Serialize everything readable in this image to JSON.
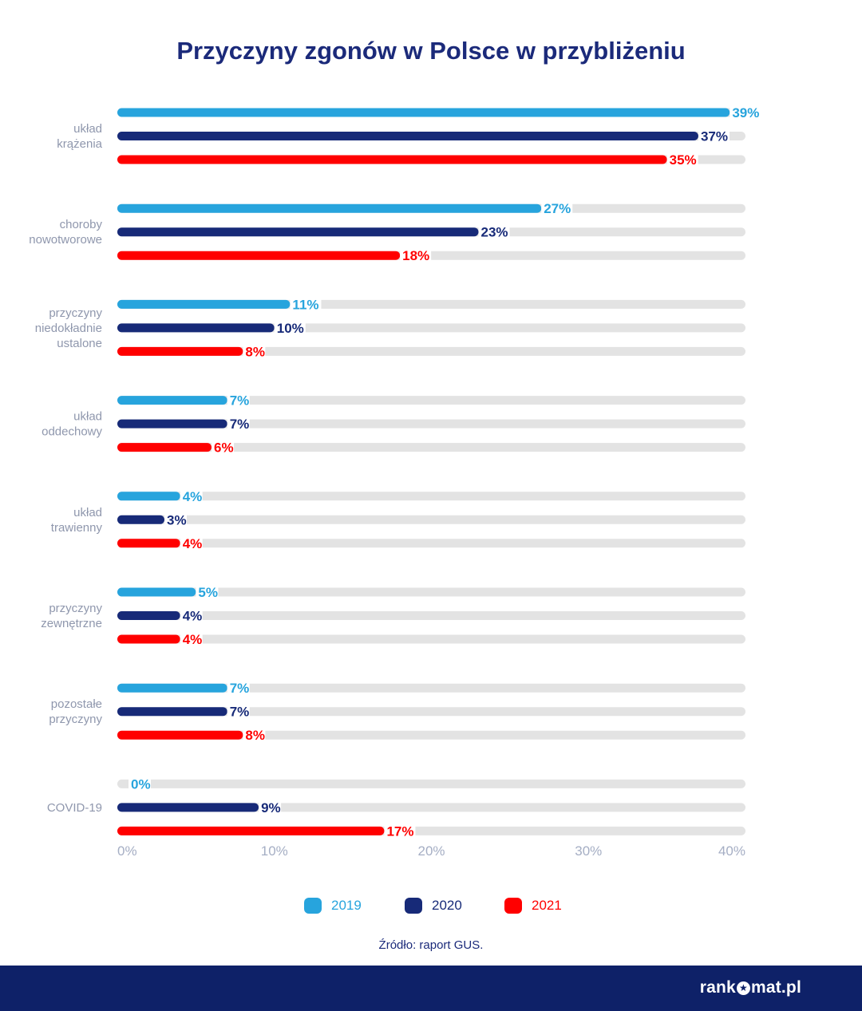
{
  "title": "Przyczyny zgonów w Polsce w przybliżeniu",
  "source": "Źródło: raport GUS.",
  "brand": {
    "part1": "rank",
    "part2": "mat.pl"
  },
  "colors": {
    "2019": "#27a4dd",
    "2020": "#172a78",
    "2021": "#ff0000",
    "track": "#e3e3e3",
    "axis_text": "#a5aec4",
    "category_text": "#8f97ad"
  },
  "legend": [
    {
      "label": "2019",
      "color": "#27a4dd"
    },
    {
      "label": "2020",
      "color": "#172a78"
    },
    {
      "label": "2021",
      "color": "#ff0000"
    }
  ],
  "chart_data": {
    "type": "bar",
    "orientation": "horizontal",
    "title": "Przyczyny zgonów w Polsce w przybliżeniu",
    "categories": [
      [
        "układ",
        "krążenia"
      ],
      [
        "choroby",
        "nowotworowe"
      ],
      [
        "przyczyny",
        "niedokładnie",
        "ustalone"
      ],
      [
        "układ",
        "oddechowy"
      ],
      [
        "układ",
        "trawienny"
      ],
      [
        "przyczyny",
        "zewnętrzne"
      ],
      [
        "pozostałe",
        "przyczyny"
      ],
      [
        "COVID-19"
      ]
    ],
    "series": [
      {
        "name": "2019",
        "color": "#27a4dd",
        "values": [
          39,
          27,
          11,
          7,
          4,
          5,
          7,
          0
        ],
        "labels": [
          "39%",
          "27%",
          "11%",
          "7%",
          "4%",
          "5%",
          "7%",
          "0%"
        ]
      },
      {
        "name": "2020",
        "color": "#172a78",
        "values": [
          37,
          23,
          10,
          7,
          3,
          4,
          7,
          9
        ],
        "labels": [
          "37%",
          "23%",
          "10%",
          "7%",
          "3%",
          "4%",
          "7%",
          "9%"
        ]
      },
      {
        "name": "2021",
        "color": "#ff0000",
        "values": [
          35,
          18,
          8,
          6,
          4,
          4,
          8,
          17
        ],
        "labels": [
          "35%",
          "18%",
          "8%",
          "6%",
          "4%",
          "4%",
          "8%",
          "17%"
        ]
      }
    ],
    "xlim": [
      0,
      40
    ],
    "xticks": [
      "0%",
      "10%",
      "20%",
      "30%",
      "40%"
    ],
    "legend_position": "bottom",
    "grid": false
  }
}
